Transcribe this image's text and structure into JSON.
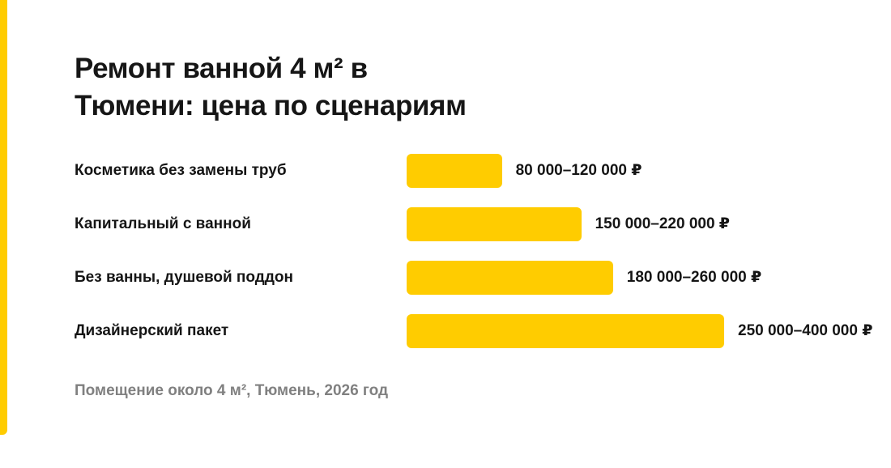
{
  "title_lines": [
    "Ремонт ванной 4 м² в",
    "Тюмени: цена по сценариям"
  ],
  "footnote": "Помещение около 4 м², Тюмень, 2026 год",
  "colors": {
    "accent": "#FFCC00",
    "bar": "#FFCC00"
  },
  "chart_data": {
    "type": "bar",
    "orientation": "horizontal",
    "title": "Ремонт ванной 4 м² в Тюмени: цена по сценариям",
    "categories": [
      "Косметика без замены труб",
      "Капитальный с ванной",
      "Без ванны, душевой поддон",
      "Дизайнерский пакет"
    ],
    "ranges": [
      [
        80000,
        120000
      ],
      [
        150000,
        220000
      ],
      [
        180000,
        260000
      ],
      [
        250000,
        400000
      ]
    ],
    "bar_value_basis": "upper bound of range",
    "values": [
      120000,
      220000,
      260000,
      400000
    ],
    "data_labels": [
      "80 000–120 000 ₽",
      "150 000–220 000 ₽",
      "180 000–260 000 ₽",
      "250 000–400 000 ₽"
    ],
    "unit": "₽",
    "xlim": [
      0,
      400000
    ],
    "grid": false,
    "legend": "none"
  }
}
